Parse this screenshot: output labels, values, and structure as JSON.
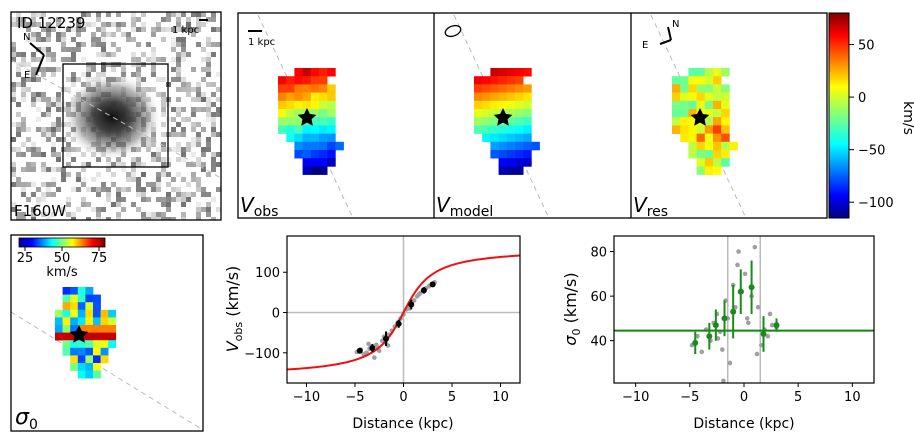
{
  "image_panel": {
    "id_label": "ID 12239",
    "filter_label": "F160W",
    "scale_label": "1 kpc",
    "compass_n": "N",
    "compass_e": "E"
  },
  "velocity_maps": {
    "scale_label": "1 kpc",
    "compass_n": "N",
    "compass_e": "E",
    "panels": [
      {
        "main": "V",
        "sub": "obs"
      },
      {
        "main": "V",
        "sub": "model"
      },
      {
        "main": "V",
        "sub": "res"
      }
    ]
  },
  "colorbar": {
    "label": "km/s",
    "ticks": [
      "50",
      "0",
      "−50",
      "−100"
    ],
    "tick_values": [
      50,
      0,
      -50,
      -100
    ],
    "range": [
      -115,
      80
    ],
    "colormap": "jet"
  },
  "sigma_map": {
    "label_main": "σ",
    "label_sub": "0",
    "colorbar_ticks": [
      "25",
      "50",
      "75"
    ],
    "colorbar_label": "km/s",
    "range": [
      18,
      90
    ]
  },
  "colors": {
    "model_curve": "#ee1111",
    "sigma_points": "#1a8a1a",
    "sigma_line": "#118811",
    "data_points": "#000000",
    "raw_points": "#a0a0a0",
    "guide_lines": "#bbbbbb"
  },
  "chart_data": [
    {
      "type": "scatter",
      "title": "",
      "xlabel": "Distance (kpc)",
      "ylabel_main": "V",
      "ylabel_sub": "obs",
      "ylabel_unit": " (km/s)",
      "xlim": [
        -12,
        12
      ],
      "ylim": [
        -175,
        190
      ],
      "xticks": [
        -10,
        -5,
        0,
        5,
        10
      ],
      "yticks": [
        -100,
        0,
        100
      ],
      "xtick_labels": [
        "−10",
        "−5",
        "0",
        "5",
        "10"
      ],
      "ytick_labels": [
        "−100",
        "0",
        "100"
      ],
      "reference_lines": {
        "x": [
          0
        ],
        "y": [
          0
        ]
      },
      "model_curve": {
        "vmax": 160,
        "rt": 2.2,
        "x_range": [
          -12,
          12
        ]
      },
      "binned": {
        "x": [
          -4.5,
          -3.2,
          -1.8,
          -0.5,
          0.8,
          2.1,
          3.0
        ],
        "y": [
          -95,
          -88,
          -65,
          -28,
          20,
          55,
          70
        ],
        "yerr": [
          4,
          10,
          18,
          10,
          12,
          8,
          5
        ]
      },
      "raw_points": {
        "x": [
          -4.8,
          -4.4,
          -4.1,
          -3.8,
          -3.5,
          -3.3,
          -3.0,
          -2.8,
          -2.5,
          -2.2,
          -2.0,
          -1.8,
          -1.5,
          -1.2,
          -0.9,
          -0.6,
          -0.3,
          0.0,
          0.3,
          0.5,
          0.8,
          1.1,
          1.4,
          1.7,
          2.0,
          2.3,
          2.6,
          2.9,
          3.2,
          -3.6,
          -2.6,
          -1.6,
          0.6,
          1.6
        ],
        "y": [
          -98,
          -92,
          -104,
          -100,
          -90,
          -85,
          -112,
          -80,
          -95,
          -70,
          -60,
          -75,
          -55,
          -45,
          -35,
          -25,
          -15,
          -5,
          8,
          15,
          22,
          30,
          40,
          48,
          55,
          60,
          65,
          70,
          75,
          -78,
          -88,
          -82,
          10,
          45
        ]
      }
    },
    {
      "type": "scatter",
      "title": "",
      "xlabel": "Distance (kpc)",
      "ylabel_main": "σ",
      "ylabel_sub": "0",
      "ylabel_unit": " (km/s)",
      "xlim": [
        -12,
        12
      ],
      "ylim": [
        21,
        87
      ],
      "xticks": [
        -10,
        -5,
        0,
        5,
        10
      ],
      "yticks": [
        40,
        60,
        80
      ],
      "xtick_labels": [
        "−10",
        "−5",
        "0",
        "5",
        "10"
      ],
      "ytick_labels": [
        "40",
        "60",
        "80"
      ],
      "reference_lines": {
        "x": [
          -1.5,
          1.5
        ]
      },
      "sigma_level": 44.5,
      "binned": {
        "x": [
          -4.5,
          -3.2,
          -2.6,
          -1.8,
          -1.0,
          -0.3,
          0.7,
          1.8,
          3.0
        ],
        "y": [
          39,
          42,
          47,
          50,
          53,
          62,
          64,
          43,
          47
        ],
        "yerr": [
          5,
          6,
          7,
          8,
          12,
          10,
          12,
          8,
          3
        ]
      },
      "raw_points": {
        "x": [
          -4.8,
          -4.3,
          -3.9,
          -3.5,
          -3.1,
          -2.8,
          -2.5,
          -2.2,
          -2.0,
          -1.7,
          -1.5,
          -1.3,
          -1.0,
          -0.8,
          -0.5,
          -0.2,
          0.1,
          0.4,
          0.7,
          1.0,
          1.3,
          1.6,
          1.9,
          2.2,
          2.6,
          3.0,
          -1.9,
          -0.6,
          0.3,
          1.2,
          -2.4,
          2.4
        ],
        "y": [
          38,
          42,
          35,
          45,
          40,
          48,
          52,
          44,
          36,
          58,
          50,
          30,
          65,
          55,
          80,
          62,
          70,
          48,
          60,
          82,
          55,
          38,
          45,
          42,
          47,
          46,
          22,
          74,
          50,
          34,
          41,
          52
        ]
      }
    }
  ]
}
